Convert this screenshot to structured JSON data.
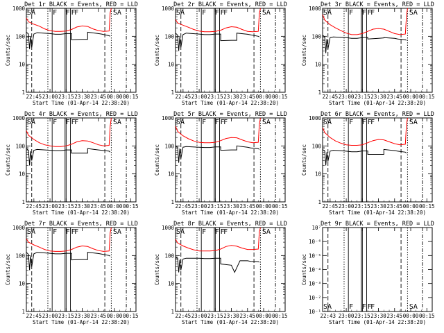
{
  "chart_data": [
    {
      "type": "line",
      "title": "Det 1r BLACK = Events, RED = LLD",
      "ylabel": "Counts/sec",
      "xlabel": "Start Time (01-Apr-14 22:38:20)",
      "x_ticks": [
        "22:45",
        "23:00",
        "23:15",
        "23:30",
        "23:45",
        "00:00",
        "00:15"
      ],
      "y_ticks": [
        "1",
        "10",
        "100",
        "1000"
      ],
      "y_scale": "log",
      "ylim": [
        1,
        1000
      ],
      "flags": [
        "SA",
        "F",
        "F",
        "F",
        "F",
        "SA"
      ],
      "series": [
        {
          "color": "#ff0000",
          "x": [
            "22:38",
            "22:40",
            "22:45",
            "22:50",
            "22:55",
            "23:00",
            "23:05",
            "23:10",
            "23:15",
            "23:20",
            "23:25",
            "23:30",
            "23:35",
            "23:40",
            "23:45",
            "23:50",
            "23:55",
            "23:56",
            "23:57"
          ],
          "y": [
            450,
            330,
            270,
            230,
            185,
            160,
            150,
            150,
            155,
            175,
            215,
            235,
            225,
            185,
            160,
            150,
            155,
            700,
            1000
          ]
        },
        {
          "color": "#000000",
          "x": [
            "22:38",
            "22:40",
            "22:41",
            "22:42",
            "22:43",
            "22:45",
            "22:48",
            "23:00",
            "23:05",
            "23:10",
            "23:15",
            "23:20",
            "23:20",
            "23:30",
            "23:35",
            "23:35",
            "23:45",
            "23:48",
            "23:55",
            "23:56"
          ],
          "y": [
            140,
            120,
            35,
            100,
            40,
            120,
            135,
            125,
            118,
            118,
            125,
            125,
            75,
            78,
            78,
            140,
            125,
            120,
            105,
            100
          ]
        }
      ]
    },
    {
      "type": "line",
      "title": "Det 2r BLACK = Events, RED = LLD",
      "ylabel": "Counts/sec",
      "xlabel": "Start Time (01-Apr-14 22:38:20)",
      "x_ticks": [
        "22:45",
        "23:00",
        "23:15",
        "23:30",
        "23:45",
        "00:00",
        "00:15"
      ],
      "y_ticks": [
        "1",
        "10",
        "100",
        "1000"
      ],
      "y_scale": "log",
      "ylim": [
        1,
        1000
      ],
      "flags": [
        "SA",
        "F",
        "F",
        "F",
        "F",
        "SA"
      ],
      "series": [
        {
          "color": "#ff0000",
          "x": [
            "22:38",
            "22:40",
            "22:45",
            "22:50",
            "22:55",
            "23:00",
            "23:05",
            "23:10",
            "23:15",
            "23:20",
            "23:25",
            "23:30",
            "23:35",
            "23:40",
            "23:45",
            "23:50",
            "23:55",
            "23:56",
            "23:57"
          ],
          "y": [
            400,
            300,
            250,
            210,
            175,
            155,
            145,
            145,
            150,
            165,
            200,
            220,
            210,
            175,
            150,
            145,
            150,
            650,
            1000
          ]
        },
        {
          "color": "#000000",
          "x": [
            "22:38",
            "22:40",
            "22:41",
            "22:42",
            "22:43",
            "22:45",
            "22:48",
            "23:00",
            "23:05",
            "23:10",
            "23:15",
            "23:20",
            "23:20",
            "23:30",
            "23:35",
            "23:35",
            "23:45",
            "23:48",
            "23:55",
            "23:56"
          ],
          "y": [
            130,
            110,
            30,
            95,
            40,
            115,
            130,
            120,
            115,
            115,
            120,
            120,
            70,
            72,
            72,
            130,
            118,
            112,
            100,
            95
          ]
        }
      ]
    },
    {
      "type": "line",
      "title": "Det 3r BLACK = Events, RED = LLD",
      "ylabel": "Counts/sec",
      "xlabel": "Start Time (01-Apr-14 22:38:20)",
      "x_ticks": [
        "22:45",
        "23:00",
        "23:15",
        "23:30",
        "23:45",
        "00:00",
        "00:15"
      ],
      "y_ticks": [
        "1",
        "10",
        "100",
        "1000"
      ],
      "y_scale": "log",
      "ylim": [
        1,
        1000
      ],
      "flags": [
        "SA",
        "F",
        "F",
        "F",
        "F",
        "SA"
      ],
      "series": [
        {
          "color": "#ff0000",
          "x": [
            "22:38",
            "22:40",
            "22:45",
            "22:50",
            "22:55",
            "23:00",
            "23:05",
            "23:10",
            "23:15",
            "23:20",
            "23:25",
            "23:30",
            "23:35",
            "23:40",
            "23:45",
            "23:50",
            "23:55",
            "23:56",
            "23:57"
          ],
          "y": [
            600,
            380,
            260,
            200,
            160,
            130,
            115,
            115,
            125,
            150,
            180,
            190,
            180,
            150,
            125,
            115,
            120,
            500,
            1000
          ]
        },
        {
          "color": "#000000",
          "x": [
            "22:38",
            "22:40",
            "22:41",
            "22:42",
            "22:43",
            "22:45",
            "22:48",
            "23:00",
            "23:05",
            "23:10",
            "23:15",
            "23:20",
            "23:20",
            "23:30",
            "23:35",
            "23:35",
            "23:45",
            "23:48",
            "23:55",
            "23:56"
          ],
          "y": [
            110,
            95,
            25,
            80,
            35,
            90,
            95,
            90,
            85,
            85,
            90,
            92,
            80,
            85,
            88,
            90,
            85,
            80,
            75,
            72
          ]
        }
      ]
    },
    {
      "type": "line",
      "title": "Det 4r BLACK = Events, RED = LLD",
      "ylabel": "Counts/sec",
      "xlabel": "Start Time (01-Apr-14 22:38:20)",
      "x_ticks": [
        "22:45",
        "23:00",
        "23:15",
        "23:30",
        "23:45",
        "00:00",
        "00:15"
      ],
      "y_ticks": [
        "1",
        "10",
        "100",
        "1000"
      ],
      "y_scale": "log",
      "ylim": [
        1,
        1000
      ],
      "flags": [
        "SA",
        "F",
        "F",
        "F",
        "F",
        "SA"
      ],
      "series": [
        {
          "color": "#ff0000",
          "x": [
            "22:38",
            "22:40",
            "22:45",
            "22:50",
            "22:55",
            "23:00",
            "23:05",
            "23:10",
            "23:15",
            "23:20",
            "23:25",
            "23:30",
            "23:35",
            "23:40",
            "23:45",
            "23:50",
            "23:55",
            "23:56",
            "23:57"
          ],
          "y": [
            350,
            240,
            170,
            130,
            110,
            100,
            95,
            95,
            100,
            115,
            140,
            155,
            150,
            130,
            110,
            100,
            105,
            500,
            1000
          ]
        },
        {
          "color": "#000000",
          "x": [
            "22:38",
            "22:40",
            "22:41",
            "22:42",
            "22:43",
            "22:45",
            "22:48",
            "23:00",
            "23:05",
            "23:10",
            "23:15",
            "23:20",
            "23:20",
            "23:30",
            "23:35",
            "23:35",
            "23:45",
            "23:48",
            "23:55",
            "23:56"
          ],
          "y": [
            80,
            70,
            20,
            65,
            30,
            70,
            75,
            70,
            68,
            68,
            72,
            72,
            55,
            55,
            55,
            80,
            72,
            70,
            65,
            60
          ]
        }
      ]
    },
    {
      "type": "line",
      "title": "Det 5r BLACK = Events, RED = LLD",
      "ylabel": "Counts/sec",
      "xlabel": "Start Time (01-Apr-14 22:38:20)",
      "x_ticks": [
        "22:45",
        "23:00",
        "23:15",
        "23:30",
        "23:45",
        "00:00",
        "00:15"
      ],
      "y_ticks": [
        "1",
        "10",
        "100",
        "1000"
      ],
      "y_scale": "log",
      "ylim": [
        1,
        1000
      ],
      "flags": [
        "SA",
        "F",
        "F",
        "F",
        "F",
        "SA"
      ],
      "series": [
        {
          "color": "#ff0000",
          "x": [
            "22:38",
            "22:40",
            "22:45",
            "22:50",
            "22:55",
            "23:00",
            "23:05",
            "23:10",
            "23:15",
            "23:20",
            "23:25",
            "23:30",
            "23:35",
            "23:40",
            "23:45",
            "23:50",
            "23:55",
            "23:56",
            "23:57"
          ],
          "y": [
            500,
            330,
            230,
            180,
            150,
            135,
            130,
            130,
            135,
            155,
            185,
            200,
            195,
            165,
            140,
            130,
            135,
            600,
            1000
          ]
        },
        {
          "color": "#000000",
          "x": [
            "22:38",
            "22:40",
            "22:41",
            "22:42",
            "22:43",
            "22:45",
            "22:48",
            "23:00",
            "23:05",
            "23:10",
            "23:15",
            "23:20",
            "23:20",
            "23:30",
            "23:35",
            "23:35",
            "23:45",
            "23:48",
            "23:55",
            "23:56"
          ],
          "y": [
            100,
            90,
            25,
            80,
            35,
            90,
            95,
            90,
            88,
            88,
            92,
            92,
            70,
            72,
            72,
            100,
            90,
            85,
            80,
            75
          ]
        }
      ]
    },
    {
      "type": "line",
      "title": "Det 6r BLACK = Events, RED = LLD",
      "ylabel": "Counts/sec",
      "xlabel": "Start Time (01-Apr-14 22:38:20)",
      "x_ticks": [
        "22:45",
        "23:00",
        "23:15",
        "23:30",
        "23:45",
        "00:00",
        "00:15"
      ],
      "y_ticks": [
        "1",
        "10",
        "100",
        "1000"
      ],
      "y_scale": "log",
      "ylim": [
        1,
        1000
      ],
      "flags": [
        "SA",
        "F",
        "F",
        "F",
        "F",
        "SA"
      ],
      "series": [
        {
          "color": "#ff0000",
          "x": [
            "22:38",
            "22:40",
            "22:45",
            "22:50",
            "22:55",
            "23:00",
            "23:05",
            "23:10",
            "23:15",
            "23:20",
            "23:25",
            "23:30",
            "23:35",
            "23:40",
            "23:45",
            "23:50",
            "23:55",
            "23:56",
            "23:57"
          ],
          "y": [
            450,
            300,
            200,
            150,
            125,
            110,
            105,
            105,
            110,
            130,
            155,
            170,
            165,
            140,
            120,
            110,
            115,
            550,
            1000
          ]
        },
        {
          "color": "#000000",
          "x": [
            "22:38",
            "22:40",
            "22:41",
            "22:42",
            "22:43",
            "22:45",
            "22:48",
            "23:00",
            "23:05",
            "23:10",
            "23:15",
            "23:20",
            "23:20",
            "23:30",
            "23:35",
            "23:35",
            "23:45",
            "23:48",
            "23:55",
            "23:56"
          ],
          "y": [
            75,
            65,
            20,
            60,
            28,
            65,
            70,
            65,
            62,
            62,
            66,
            66,
            50,
            50,
            50,
            75,
            68,
            65,
            60,
            55
          ]
        }
      ]
    },
    {
      "type": "line",
      "title": "Det 7r BLACK = Events, RED = LLD",
      "ylabel": "Counts/sec",
      "xlabel": "Start Time (01-Apr-14 22:38:20)",
      "x_ticks": [
        "22:45",
        "23:00",
        "23:15",
        "23:30",
        "23:45",
        "00:00",
        "00:15"
      ],
      "y_ticks": [
        "1",
        "10",
        "100",
        "1000"
      ],
      "y_scale": "log",
      "ylim": [
        1,
        1000
      ],
      "flags": [
        "SA",
        "F",
        "F",
        "F",
        "F",
        "SA"
      ],
      "series": [
        {
          "color": "#ff0000",
          "x": [
            "22:38",
            "22:40",
            "22:45",
            "22:50",
            "22:55",
            "23:00",
            "23:05",
            "23:10",
            "23:15",
            "23:20",
            "23:25",
            "23:30",
            "23:35",
            "23:40",
            "23:45",
            "23:50",
            "23:55",
            "23:56",
            "23:57"
          ],
          "y": [
            400,
            300,
            240,
            200,
            165,
            145,
            140,
            140,
            145,
            165,
            200,
            220,
            210,
            175,
            150,
            140,
            145,
            650,
            1000
          ]
        },
        {
          "color": "#000000",
          "x": [
            "22:38",
            "22:40",
            "22:41",
            "22:42",
            "22:43",
            "22:45",
            "22:48",
            "23:00",
            "23:05",
            "23:10",
            "23:15",
            "23:20",
            "23:20",
            "23:30",
            "23:35",
            "23:35",
            "23:45",
            "23:48",
            "23:55",
            "23:56"
          ],
          "y": [
            130,
            110,
            30,
            95,
            40,
            115,
            130,
            120,
            115,
            115,
            120,
            120,
            70,
            72,
            72,
            130,
            118,
            112,
            100,
            95
          ]
        }
      ]
    },
    {
      "type": "line",
      "title": "Det 8r BLACK = Events, RED = LLD",
      "ylabel": "Counts/sec",
      "xlabel": "Start Time (01-Apr-14 22:38:20)",
      "x_ticks": [
        "22:45",
        "23:00",
        "23:15",
        "23:30",
        "23:45",
        "00:00",
        "00:15"
      ],
      "y_ticks": [
        "1",
        "10",
        "100",
        "1000"
      ],
      "y_scale": "log",
      "ylim": [
        1,
        1000
      ],
      "flags": [
        "SA",
        "F",
        "F",
        "F",
        "F",
        "SA"
      ],
      "series": [
        {
          "color": "#ff0000",
          "x": [
            "22:38",
            "22:40",
            "22:45",
            "22:50",
            "22:55",
            "23:00",
            "23:05",
            "23:10",
            "23:15",
            "23:20",
            "23:25",
            "23:30",
            "23:35",
            "23:40",
            "23:45",
            "23:50",
            "23:55",
            "23:56",
            "23:57"
          ],
          "y": [
            380,
            280,
            220,
            185,
            160,
            145,
            145,
            145,
            150,
            170,
            210,
            230,
            215,
            185,
            165,
            165,
            170,
            700,
            1000
          ]
        },
        {
          "color": "#000000",
          "x": [
            "22:38",
            "22:40",
            "22:41",
            "22:42",
            "22:43",
            "22:45",
            "22:48",
            "23:00",
            "23:05",
            "23:10",
            "23:15",
            "23:20",
            "23:20",
            "23:30",
            "23:33",
            "23:38",
            "23:45",
            "23:48",
            "23:55",
            "23:56"
          ],
          "y": [
            90,
            80,
            25,
            70,
            30,
            75,
            80,
            80,
            78,
            78,
            80,
            80,
            50,
            45,
            25,
            65,
            65,
            62,
            60,
            58
          ]
        }
      ]
    },
    {
      "type": "line",
      "title": "Det 9r BLACK = Events, RED = LLD",
      "ylabel": "Counts/sec",
      "xlabel": "Start Time (01-Apr-14 22:38:20)",
      "x_ticks": [
        "22:43",
        "23:00",
        "23:15",
        "23:30",
        "23:45",
        "00:00",
        "00:15"
      ],
      "y_ticks": [
        "10⁻¹",
        "10⁻²",
        "10⁻³",
        "10⁻⁴",
        "10⁻⁵",
        "10⁻⁶",
        "10⁷"
      ],
      "y_scale": "log",
      "flags": [
        "SA",
        "F",
        "F",
        "F",
        "F",
        "SA"
      ],
      "series": []
    }
  ]
}
